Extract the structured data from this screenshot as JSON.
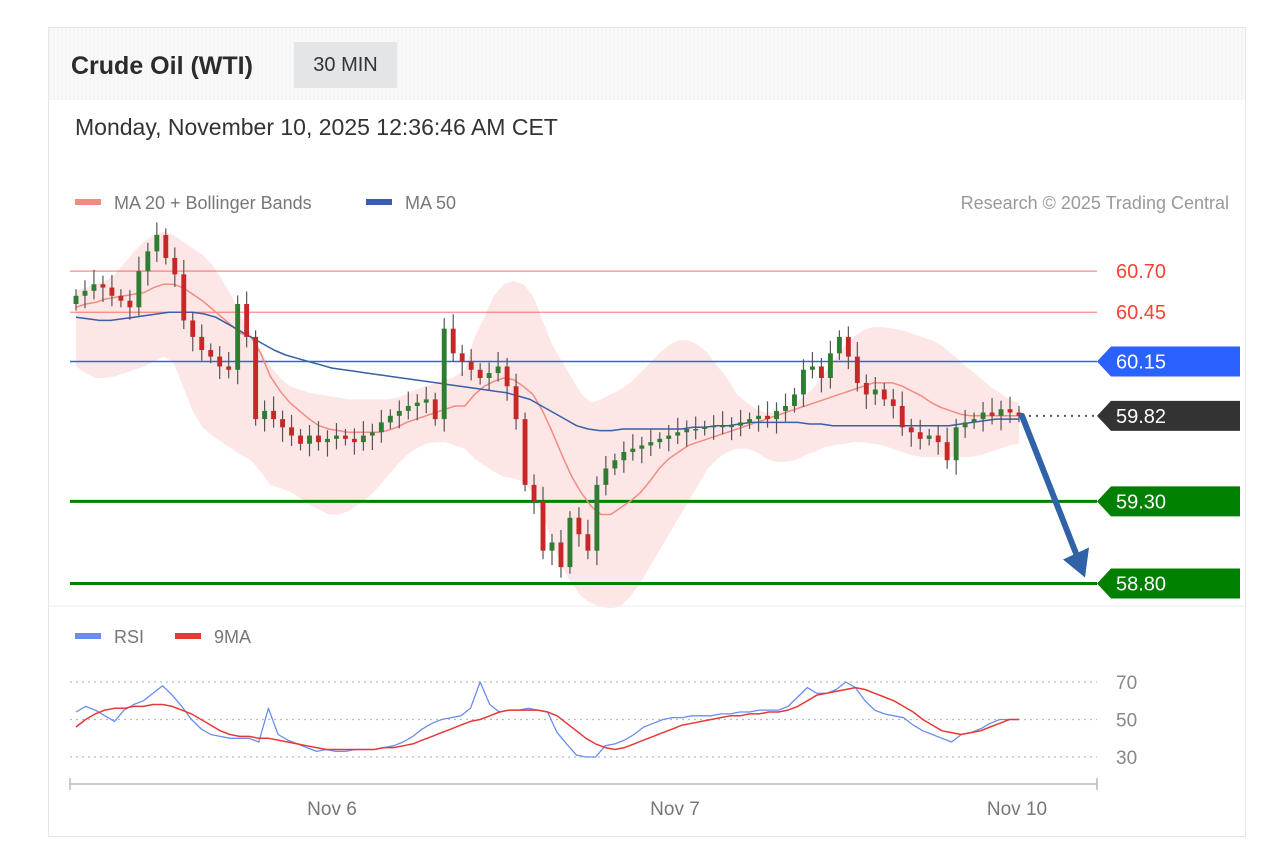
{
  "header": {
    "title": "Crude Oil (WTI)",
    "timeframe": "30 MIN"
  },
  "datetime": "Monday, November 10, 2025 12:36:46 AM CET",
  "legend": {
    "ma20": "MA 20 + Bollinger Bands",
    "ma50": "MA 50",
    "rsi": "RSI",
    "ma9": "9MA"
  },
  "copyright": "Research © 2025 Trading Central",
  "colors": {
    "resistance": "#f44336",
    "pivot": "#2962ff",
    "support": "#008000",
    "ma20": "#f28b82",
    "ma50": "#3a5ea8",
    "band": "#fde2e2",
    "up": "#2e7d32",
    "down": "#c62828",
    "rsi": "#6b8cf0",
    "rsi_ma": "#e53935",
    "current": "#333333"
  },
  "chart_data": [
    {
      "type": "line",
      "title": "",
      "x_ticks": [
        "Nov 6",
        "Nov 7",
        "Nov 10"
      ],
      "ylim": [
        58.7,
        60.95
      ],
      "levels": [
        {
          "label": "60.70",
          "value": 60.7,
          "kind": "resistance"
        },
        {
          "label": "60.45",
          "value": 60.45,
          "kind": "resistance"
        },
        {
          "label": "60.15",
          "value": 60.15,
          "kind": "pivot"
        },
        {
          "label": "59.82",
          "value": 59.82,
          "kind": "current"
        },
        {
          "label": "59.30",
          "value": 59.3,
          "kind": "support"
        },
        {
          "label": "58.80",
          "value": 58.8,
          "kind": "support"
        }
      ],
      "close": [
        60.55,
        60.58,
        60.62,
        60.6,
        60.55,
        60.52,
        60.48,
        60.7,
        60.82,
        60.92,
        60.78,
        60.68,
        60.4,
        60.3,
        60.22,
        60.18,
        60.12,
        60.1,
        60.5,
        60.3,
        59.8,
        59.85,
        59.8,
        59.75,
        59.7,
        59.65,
        59.7,
        59.66,
        59.68,
        59.7,
        59.68,
        59.66,
        59.7,
        59.72,
        59.78,
        59.82,
        59.85,
        59.88,
        59.9,
        59.92,
        59.8,
        60.35,
        60.2,
        60.15,
        60.1,
        60.05,
        60.08,
        60.12,
        60.0,
        59.8,
        59.4,
        59.3,
        59.0,
        59.05,
        58.9,
        59.2,
        59.1,
        59.0,
        59.4,
        59.5,
        59.55,
        59.6,
        59.62,
        59.64,
        59.66,
        59.68,
        59.7,
        59.72,
        59.74,
        59.74,
        59.75,
        59.76,
        59.76,
        59.76,
        59.78,
        59.8,
        59.82,
        59.8,
        59.85,
        59.88,
        59.95,
        60.1,
        60.12,
        60.05,
        60.2,
        60.3,
        60.18,
        60.02,
        59.95,
        59.98,
        59.92,
        59.88,
        59.75,
        59.72,
        59.68,
        59.7,
        59.66,
        59.55,
        59.75,
        59.78,
        59.8,
        59.84,
        59.82,
        59.86,
        59.84,
        59.82
      ],
      "ma20": [
        60.48,
        60.5,
        60.51,
        60.53,
        60.54,
        60.55,
        60.56,
        60.57,
        60.6,
        60.62,
        60.62,
        60.6,
        60.56,
        60.52,
        60.47,
        60.42,
        60.37,
        60.32,
        60.3,
        60.2,
        60.06,
        59.97,
        59.9,
        59.85,
        59.8,
        59.76,
        59.74,
        59.73,
        59.72,
        59.72,
        59.72,
        59.72,
        59.73,
        59.75,
        59.78,
        59.8,
        59.82,
        59.84,
        59.86,
        59.88,
        59.88,
        59.95,
        60.0,
        60.03,
        60.05,
        60.04,
        60.0,
        59.95,
        59.85,
        59.72,
        59.58,
        59.45,
        59.35,
        59.27,
        59.22,
        59.22,
        59.26,
        59.3,
        59.35,
        59.42,
        59.5,
        59.56,
        59.6,
        59.64,
        59.66,
        59.68,
        59.7,
        59.72,
        59.74,
        59.76,
        59.78,
        59.8,
        59.82,
        59.84,
        59.86,
        59.88,
        59.9,
        59.92,
        59.94,
        59.96,
        59.98,
        60.0,
        60.02,
        60.02,
        60.02,
        60.0,
        59.97,
        59.94,
        59.9,
        59.87,
        59.85,
        59.83,
        59.82,
        59.82,
        59.82,
        59.82,
        59.82,
        59.82
      ],
      "ma20_upper": [
        60.58,
        60.6,
        60.62,
        60.64,
        60.68,
        60.75,
        60.82,
        60.88,
        60.92,
        60.94,
        60.92,
        60.88,
        60.84,
        60.8,
        60.74,
        60.65,
        60.55,
        60.42,
        60.32,
        60.22,
        60.12,
        60.05,
        60.0,
        59.98,
        59.96,
        59.95,
        59.94,
        59.93,
        59.92,
        59.92,
        59.92,
        59.92,
        59.92,
        59.93,
        59.95,
        59.98,
        60.0,
        60.02,
        60.04,
        60.06,
        60.1,
        60.3,
        60.42,
        60.55,
        60.62,
        60.64,
        60.62,
        60.55,
        60.4,
        60.25,
        60.15,
        60.05,
        59.95,
        59.9,
        59.92,
        59.95,
        59.98,
        60.02,
        60.08,
        60.14,
        60.2,
        60.25,
        60.28,
        60.28,
        60.25,
        60.2,
        60.12,
        60.05,
        59.95,
        59.9,
        59.86,
        59.84,
        59.84,
        59.86,
        59.9,
        59.94,
        60.0,
        60.08,
        60.16,
        60.24,
        60.3,
        60.34,
        60.36,
        60.36,
        60.35,
        60.34,
        60.32,
        60.3,
        60.28,
        60.25,
        60.2,
        60.15,
        60.1,
        60.05,
        60.0,
        59.96,
        59.92,
        59.9
      ],
      "ma20_lower": [
        60.12,
        60.08,
        60.05,
        60.05,
        60.06,
        60.08,
        60.1,
        60.12,
        60.15,
        60.18,
        60.15,
        60.0,
        59.85,
        59.75,
        59.7,
        59.66,
        59.62,
        59.58,
        59.55,
        59.48,
        59.4,
        59.38,
        59.36,
        59.32,
        59.28,
        59.25,
        59.22,
        59.22,
        59.24,
        59.28,
        59.32,
        59.38,
        59.45,
        59.52,
        59.58,
        59.62,
        59.65,
        59.66,
        59.66,
        59.64,
        59.62,
        59.56,
        59.52,
        59.48,
        59.45,
        59.44,
        59.42,
        59.35,
        59.22,
        59.05,
        58.9,
        58.8,
        58.72,
        58.68,
        58.66,
        58.65,
        58.66,
        58.72,
        58.8,
        58.9,
        59.0,
        59.1,
        59.2,
        59.3,
        59.4,
        59.5,
        59.56,
        59.6,
        59.62,
        59.62,
        59.6,
        59.56,
        59.54,
        59.54,
        59.55,
        59.58,
        59.6,
        59.63,
        59.64,
        59.65,
        59.66,
        59.66,
        59.65,
        59.64,
        59.62,
        59.6,
        59.58,
        59.57,
        59.57,
        59.57,
        59.57,
        59.57,
        59.57,
        59.58,
        59.6,
        59.62,
        59.64,
        59.65
      ],
      "ma50": [
        60.42,
        60.41,
        60.4,
        60.4,
        60.41,
        60.42,
        60.43,
        60.44,
        60.45,
        60.45,
        60.45,
        60.44,
        60.42,
        60.38,
        60.34,
        60.3,
        60.26,
        60.22,
        60.19,
        60.17,
        60.15,
        60.13,
        60.11,
        60.1,
        60.09,
        60.08,
        60.07,
        60.06,
        60.05,
        60.04,
        60.03,
        60.02,
        60.01,
        60.0,
        59.99,
        59.98,
        59.97,
        59.96,
        59.94,
        59.92,
        59.88,
        59.84,
        59.8,
        59.76,
        59.74,
        59.73,
        59.73,
        59.74,
        59.74,
        59.74,
        59.74,
        59.74,
        59.74,
        59.75,
        59.75,
        59.76,
        59.76,
        59.77,
        59.78,
        59.78,
        59.78,
        59.78,
        59.78,
        59.77,
        59.77,
        59.76,
        59.76,
        59.76,
        59.76,
        59.76,
        59.76,
        59.76,
        59.76,
        59.76,
        59.76,
        59.76,
        59.77,
        59.78,
        59.79,
        59.8,
        59.8,
        59.8
      ],
      "forecast": {
        "from": 59.82,
        "to": 58.8
      }
    },
    {
      "type": "line",
      "title": "",
      "ylim": [
        25,
        75
      ],
      "y_ticks": [
        "70",
        "50",
        "30"
      ],
      "rsi": [
        54,
        57,
        55,
        52,
        49,
        55,
        58,
        60,
        64,
        68,
        63,
        57,
        50,
        45,
        42,
        41,
        40,
        40,
        40,
        38,
        56,
        42,
        39,
        37,
        35,
        33,
        34,
        33,
        33,
        34,
        34,
        34,
        35,
        36,
        38,
        41,
        45,
        48,
        50,
        51,
        52,
        56,
        70,
        58,
        54,
        55,
        55,
        56,
        55,
        54,
        43,
        37,
        31,
        30,
        30,
        36,
        37,
        39,
        42,
        46,
        48,
        50,
        51,
        51,
        52,
        52,
        52,
        53,
        53,
        54,
        54,
        55,
        55,
        55,
        57,
        62,
        67,
        64,
        64,
        66,
        70,
        67,
        60,
        55,
        53,
        52,
        51,
        47,
        44,
        42,
        40,
        38,
        42,
        43,
        45,
        48,
        50,
        50,
        50
      ],
      "rsi_ma": [
        46,
        50,
        53,
        55,
        56,
        56,
        57,
        57,
        58,
        58,
        57,
        55,
        53,
        50,
        47,
        44,
        42,
        41,
        41,
        40,
        40,
        39,
        38,
        37,
        36,
        35,
        34,
        34,
        34,
        34,
        34,
        34,
        35,
        35,
        36,
        37,
        39,
        41,
        43,
        45,
        47,
        49,
        50,
        52,
        54,
        55,
        55,
        55,
        55,
        54,
        52,
        48,
        44,
        40,
        37,
        35,
        34,
        35,
        37,
        39,
        41,
        43,
        45,
        47,
        48,
        49,
        50,
        51,
        52,
        52,
        53,
        53,
        54,
        54,
        55,
        57,
        60,
        63,
        64,
        65,
        66,
        67,
        66,
        64,
        62,
        60,
        57,
        54,
        50,
        47,
        44,
        43,
        42,
        43,
        44,
        46,
        48,
        50,
        50
      ]
    }
  ]
}
